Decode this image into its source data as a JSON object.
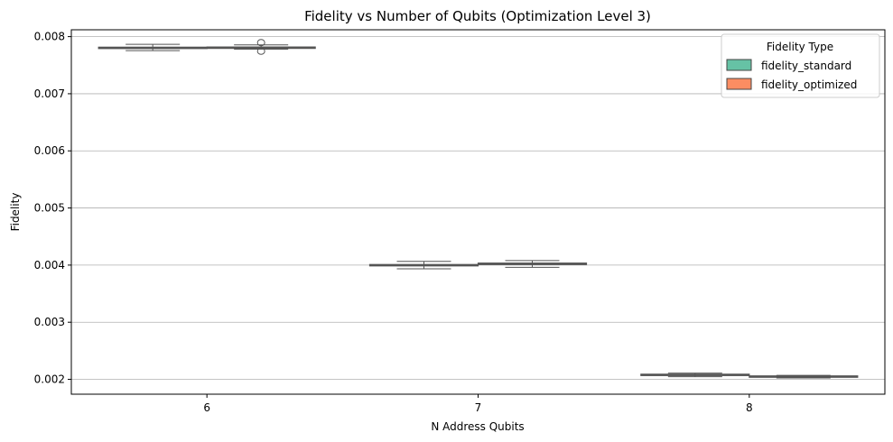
{
  "chart_data": {
    "type": "box",
    "title": "Fidelity vs Number of Qubits (Optimization Level 3)",
    "xlabel": "N Address Qubits",
    "ylabel": "Fidelity",
    "categories": [
      "6",
      "7",
      "8"
    ],
    "ylim": [
      0.00174,
      0.00812
    ],
    "yticks": [
      0.002,
      0.003,
      0.004,
      0.005,
      0.006,
      0.007,
      0.008
    ],
    "ytick_labels": [
      "0.002",
      "0.003",
      "0.004",
      "0.005",
      "0.006",
      "0.007",
      "0.008"
    ],
    "grid": "y",
    "legend": {
      "title": "Fidelity Type",
      "position": "upper right"
    },
    "series": [
      {
        "name": "fidelity_standard",
        "color": "#66c2a5",
        "boxes": [
          {
            "whislo": 0.007755,
            "q1": 0.007795,
            "med": 0.007805,
            "q3": 0.007815,
            "whishi": 0.007865,
            "fliers": []
          },
          {
            "whislo": 0.003935,
            "q1": 0.00399,
            "med": 0.004,
            "q3": 0.00401,
            "whishi": 0.004065,
            "fliers": []
          },
          {
            "whislo": 0.002045,
            "q1": 0.00207,
            "med": 0.00208,
            "q3": 0.00209,
            "whishi": 0.00211,
            "fliers": []
          }
        ]
      },
      {
        "name": "fidelity_optimized",
        "color": "#fc8d62",
        "boxes": [
          {
            "whislo": 0.00778,
            "q1": 0.0078,
            "med": 0.00781,
            "q3": 0.007818,
            "whishi": 0.007855,
            "fliers": [
              0.007745,
              0.007895
            ]
          },
          {
            "whislo": 0.00396,
            "q1": 0.00401,
            "med": 0.00402,
            "q3": 0.004035,
            "whishi": 0.00408,
            "fliers": []
          },
          {
            "whislo": 0.002025,
            "q1": 0.00204,
            "med": 0.00205,
            "q3": 0.00206,
            "whishi": 0.00207,
            "fliers": []
          }
        ]
      }
    ]
  }
}
